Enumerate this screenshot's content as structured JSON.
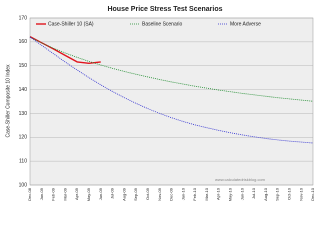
{
  "chart_data": {
    "type": "line",
    "title": "House Price Stress Test Scenarios",
    "y_label": "Case-Shiller Composite 10 Index",
    "watermark": "www.calculatedriskblog.com",
    "categories": [
      "Dec-08",
      "Jan-09",
      "Feb-09",
      "Mar-09",
      "Apr-09",
      "May-09",
      "Jun-09",
      "Jul-09",
      "Aug-09",
      "Sep-09",
      "Oct-09",
      "Nov-09",
      "Dec-09",
      "Jan-10",
      "Feb-10",
      "Mar-10",
      "Apr-10",
      "May-10",
      "Jun-10",
      "Jul-10",
      "Aug-10",
      "Sep-10",
      "Oct-10",
      "Nov-10",
      "Dec-10"
    ],
    "series": [
      {
        "name": "Case-Shiller 10 (SA)",
        "color": "#e0141e",
        "line_style": "solid",
        "values": [
          162.2,
          159.6,
          157.0,
          154.3,
          151.6,
          151.0,
          151.6,
          null,
          null,
          null,
          null,
          null,
          null,
          null,
          null,
          null,
          null,
          null,
          null,
          null,
          null,
          null,
          null,
          null,
          null
        ]
      },
      {
        "name": "Baseline Scenario",
        "color": "#1a8a2a",
        "line_style": "dotted",
        "values": [
          162.0,
          159.5,
          157.3,
          155.3,
          153.5,
          151.8,
          150.3,
          148.9,
          147.6,
          146.4,
          145.3,
          144.2,
          143.2,
          142.3,
          141.4,
          140.6,
          139.8,
          139.1,
          138.4,
          137.8,
          137.2,
          136.6,
          136.1,
          135.6,
          135.1
        ]
      },
      {
        "name": "More Adverse",
        "color": "#2a2ad0",
        "line_style": "dotted",
        "values": [
          162.0,
          158.5,
          155.0,
          151.5,
          148.2,
          145.0,
          142.0,
          139.2,
          136.6,
          134.2,
          132.0,
          130.0,
          128.2,
          126.6,
          125.2,
          124.0,
          122.9,
          121.9,
          121.0,
          120.2,
          119.5,
          118.9,
          118.4,
          118.0,
          117.6
        ]
      }
    ],
    "ylim": [
      100,
      170
    ],
    "yticks": [
      100,
      110,
      120,
      130,
      140,
      150,
      160,
      170
    ],
    "grid": true,
    "legend": "top"
  }
}
